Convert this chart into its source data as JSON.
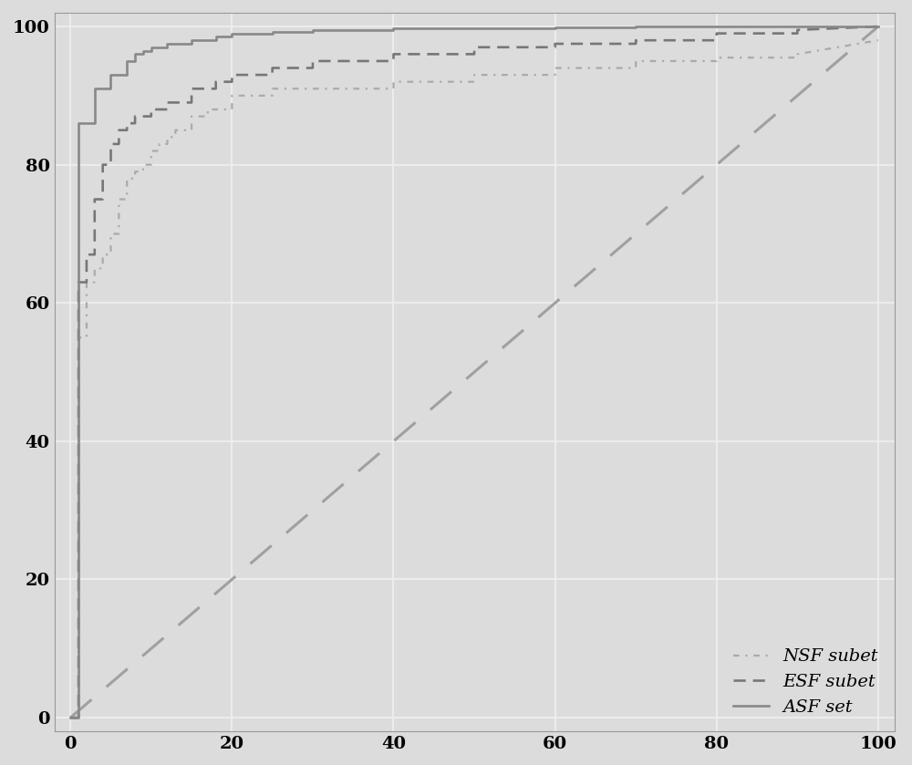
{
  "background_color": "#dcdcdc",
  "grid_color": "#f0f0f0",
  "xlim": [
    -2,
    102
  ],
  "ylim": [
    -2,
    102
  ],
  "xticks": [
    0,
    20,
    40,
    60,
    80,
    100
  ],
  "yticks": [
    0,
    20,
    40,
    60,
    80,
    100
  ],
  "diagonal_color": "#a0a0a0",
  "NSF_color": "#aaaaaa",
  "ESF_color": "#777777",
  "ASF_color": "#888888",
  "legend_labels": [
    "NSF subet",
    "ESF subet",
    "ASF set"
  ],
  "legend_loc": "lower right",
  "NSF_x": [
    0,
    1,
    1,
    2,
    2,
    3,
    3,
    4,
    4,
    5,
    5,
    6,
    6,
    7,
    7,
    8,
    8,
    9,
    9,
    10,
    10,
    11,
    11,
    12,
    12,
    13,
    13,
    15,
    15,
    17,
    17,
    20,
    20,
    25,
    25,
    30,
    30,
    40,
    40,
    50,
    50,
    60,
    60,
    70,
    70,
    80,
    80,
    90,
    90,
    100
  ],
  "NSF_y": [
    0,
    0,
    55,
    55,
    63,
    63,
    65,
    65,
    67,
    67,
    70,
    70,
    75,
    75,
    78,
    78,
    79,
    79,
    80,
    80,
    82,
    82,
    83,
    83,
    84,
    84,
    85,
    85,
    87,
    87,
    88,
    88,
    90,
    90,
    91,
    91,
    91,
    91,
    92,
    92,
    93,
    93,
    94,
    94,
    95,
    95,
    95.5,
    95.5,
    96,
    98
  ],
  "ESF_x": [
    0,
    1,
    1,
    2,
    2,
    3,
    3,
    4,
    4,
    5,
    5,
    6,
    6,
    7,
    7,
    8,
    8,
    10,
    10,
    12,
    12,
    15,
    15,
    18,
    18,
    20,
    20,
    25,
    25,
    30,
    30,
    40,
    40,
    50,
    50,
    60,
    60,
    70,
    70,
    80,
    80,
    90,
    90,
    100
  ],
  "ESF_y": [
    0,
    0,
    63,
    63,
    67,
    67,
    75,
    75,
    80,
    80,
    83,
    83,
    85,
    85,
    86,
    86,
    87,
    87,
    88,
    88,
    89,
    89,
    91,
    91,
    92,
    92,
    93,
    93,
    94,
    94,
    95,
    95,
    96,
    96,
    97,
    97,
    97.5,
    97.5,
    98,
    98,
    99,
    99,
    99.5,
    100
  ],
  "ASF_x": [
    0,
    1,
    1,
    3,
    3,
    5,
    5,
    7,
    7,
    8,
    8,
    9,
    9,
    10,
    10,
    12,
    12,
    15,
    15,
    18,
    18,
    20,
    20,
    25,
    25,
    30,
    30,
    40,
    40,
    50,
    50,
    60,
    60,
    70,
    70,
    80,
    80,
    90,
    90,
    100
  ],
  "ASF_y": [
    0,
    0,
    86,
    86,
    91,
    91,
    93,
    93,
    95,
    95,
    96,
    96,
    96.5,
    96.5,
    97,
    97,
    97.5,
    97.5,
    98,
    98,
    98.5,
    98.5,
    99,
    99,
    99.2,
    99.2,
    99.5,
    99.5,
    99.7,
    99.7,
    99.8,
    99.8,
    99.9,
    99.9,
    100,
    100,
    100,
    100,
    100,
    100
  ]
}
